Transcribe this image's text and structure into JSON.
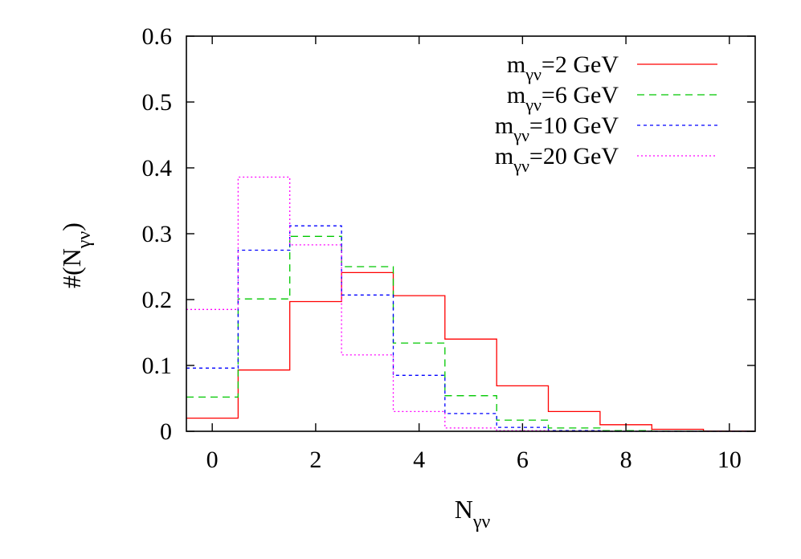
{
  "chart_data": {
    "type": "step",
    "xlabel": "N",
    "xlabel_sub": "γν",
    "ylabel_prefix": "#(N",
    "ylabel_sub": "γν",
    "ylabel_suffix": ")",
    "xlim": [
      -0.5,
      10.5
    ],
    "ylim": [
      0,
      0.6
    ],
    "xticks": [
      {
        "value": 0,
        "label": "0"
      },
      {
        "value": 2,
        "label": "2"
      },
      {
        "value": 4,
        "label": "4"
      },
      {
        "value": 6,
        "label": "6"
      },
      {
        "value": 8,
        "label": "8"
      },
      {
        "value": 10,
        "label": "10"
      }
    ],
    "yticks": [
      {
        "value": 0,
        "label": "0"
      },
      {
        "value": 0.1,
        "label": "0.1"
      },
      {
        "value": 0.2,
        "label": "0.2"
      },
      {
        "value": 0.3,
        "label": "0.3"
      },
      {
        "value": 0.4,
        "label": "0.4"
      },
      {
        "value": 0.5,
        "label": "0.5"
      },
      {
        "value": 0.6,
        "label": "0.6"
      }
    ],
    "x": [
      0,
      1,
      2,
      3,
      4,
      5,
      6,
      7,
      8,
      9,
      10
    ],
    "legend_position": "top-right",
    "grid": false,
    "series": [
      {
        "name_prefix": "m",
        "name_sub": "γν",
        "name_suffix": "=2 GeV",
        "color": "#ff0000",
        "dash": "solid",
        "values": [
          0.02,
          0.093,
          0.197,
          0.241,
          0.206,
          0.14,
          0.069,
          0.03,
          0.01,
          0.003,
          0.0005
        ]
      },
      {
        "name_prefix": "m",
        "name_sub": "γν",
        "name_suffix": "=6 GeV",
        "color": "#00c800",
        "dash": "dashed",
        "values": [
          0.052,
          0.201,
          0.296,
          0.25,
          0.134,
          0.054,
          0.017,
          0.005,
          0.001,
          0.0003,
          0
        ]
      },
      {
        "name_prefix": "m",
        "name_sub": "γν",
        "name_suffix": "=10 GeV",
        "color": "#0000ff",
        "dash": "short-dashed",
        "values": [
          0.096,
          0.275,
          0.312,
          0.207,
          0.085,
          0.027,
          0.006,
          0.001,
          0,
          0,
          0
        ]
      },
      {
        "name_prefix": "m",
        "name_sub": "γν",
        "name_suffix": "=20 GeV",
        "color": "#ff00ff",
        "dash": "dotted",
        "values": [
          0.185,
          0.386,
          0.283,
          0.116,
          0.03,
          0.005,
          0.001,
          0,
          0,
          0,
          0
        ]
      }
    ]
  }
}
